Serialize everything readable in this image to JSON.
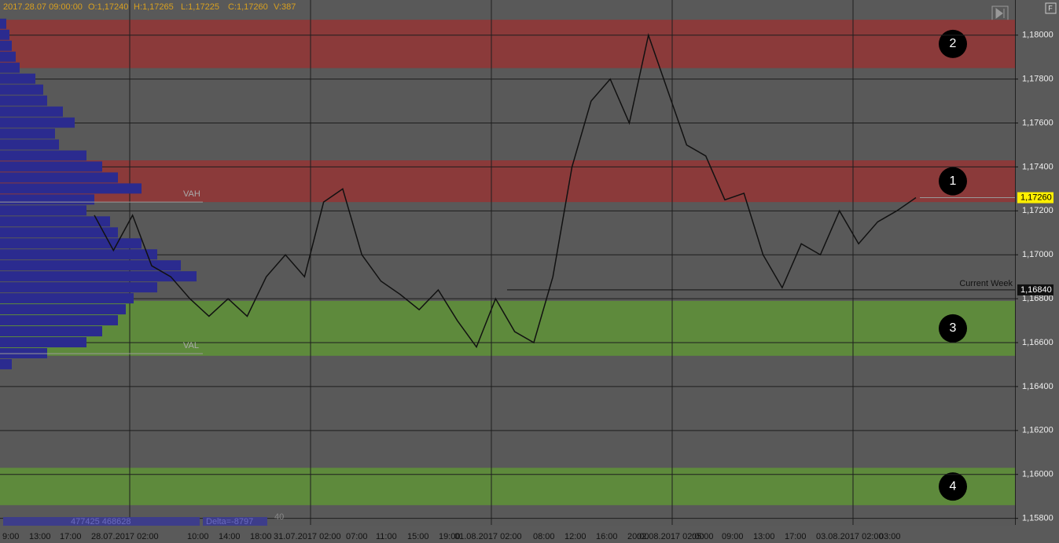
{
  "header": {
    "datetime": "2017.28.07 09:00:00",
    "open": "O:1,17240",
    "high": "H:1,17265",
    "low": "L:1,17225",
    "close": "C:1,17260",
    "volume": "V:387"
  },
  "price_axis": {
    "range": [
      1.1577,
      1.1816
    ],
    "ticks": [
      {
        "value": 1.18,
        "label": "1,18000"
      },
      {
        "value": 1.178,
        "label": "1,17800"
      },
      {
        "value": 1.176,
        "label": "1,17600"
      },
      {
        "value": 1.174,
        "label": "1,17400"
      },
      {
        "value": 1.172,
        "label": "1,17200"
      },
      {
        "value": 1.17,
        "label": "1,17000"
      },
      {
        "value": 1.168,
        "label": "1,16800"
      },
      {
        "value": 1.166,
        "label": "1,16600"
      },
      {
        "value": 1.164,
        "label": "1,16400"
      },
      {
        "value": 1.162,
        "label": "1,16200"
      },
      {
        "value": 1.16,
        "label": "1,16000"
      },
      {
        "value": 1.158,
        "label": "1,15800"
      }
    ],
    "last_price": {
      "value": 1.1726,
      "label": "1,17260"
    },
    "week_level": {
      "value": 1.1684,
      "label": "1,16840",
      "name": "Current Week"
    }
  },
  "zones": [
    {
      "label": "2",
      "from": 1.1785,
      "to": 1.1807,
      "color": "#8b3a3a"
    },
    {
      "label": "1",
      "from": 1.1724,
      "to": 1.1743,
      "color": "#8b3a3a"
    },
    {
      "label": "3",
      "from": 1.1654,
      "to": 1.1679,
      "color": "#5e8a3c"
    },
    {
      "label": "4",
      "from": 1.1586,
      "to": 1.1603,
      "color": "#5e8a3c"
    }
  ],
  "value_area": {
    "vah": {
      "label": "VAH",
      "value": 1.1724
    },
    "val": {
      "label": "VAL",
      "value": 1.1655
    }
  },
  "price_path": [
    1.1718,
    1.1702,
    1.1718,
    1.1695,
    1.169,
    1.168,
    1.1672,
    1.168,
    1.1672,
    1.169,
    1.17,
    1.169,
    1.1724,
    1.173,
    1.17,
    1.1688,
    1.1682,
    1.1675,
    1.1684,
    1.167,
    1.1658,
    1.168,
    1.1665,
    1.166,
    1.169,
    1.174,
    1.177,
    1.178,
    1.176,
    1.18,
    1.1775,
    1.175,
    1.1745,
    1.1725,
    1.1728,
    1.17,
    1.1685,
    1.1705,
    1.17,
    1.172,
    1.1705,
    1.1715,
    1.172,
    1.1726
  ],
  "volume_profile": {
    "prices": [
      1.1805,
      1.18,
      1.1795,
      1.179,
      1.1785,
      1.178,
      1.1775,
      1.177,
      1.1765,
      1.176,
      1.1755,
      1.175,
      1.1745,
      1.174,
      1.1735,
      1.173,
      1.1725,
      1.172,
      1.1715,
      1.171,
      1.1705,
      1.17,
      1.1695,
      1.169,
      1.1685,
      1.168,
      1.1675,
      1.167,
      1.1665,
      1.166,
      1.1655,
      1.165
    ],
    "volumes": [
      8,
      12,
      15,
      20,
      25,
      45,
      55,
      60,
      80,
      95,
      70,
      75,
      110,
      130,
      150,
      180,
      120,
      110,
      140,
      150,
      180,
      200,
      230,
      250,
      200,
      170,
      160,
      150,
      130,
      110,
      60,
      15
    ]
  },
  "time_axis": {
    "labels": [
      "9:00",
      "13:00",
      "17:00",
      "28.07.2017 02:00",
      "10:00",
      "14:00",
      "18:00",
      "31.07.2017 02:00",
      "07:00",
      "11:00",
      "15:00",
      "19:00",
      "01.08.2017 02:00",
      "08:00",
      "12:00",
      "16:00",
      "20:00",
      "02.08.2017 02:00",
      "05:00",
      "09:00",
      "13:00",
      "17:00",
      "03.08.2017 02:00",
      "03:00"
    ]
  },
  "footer": {
    "volumes": "477425 468628",
    "delta": "Delta=-8797",
    "count": "40"
  }
}
